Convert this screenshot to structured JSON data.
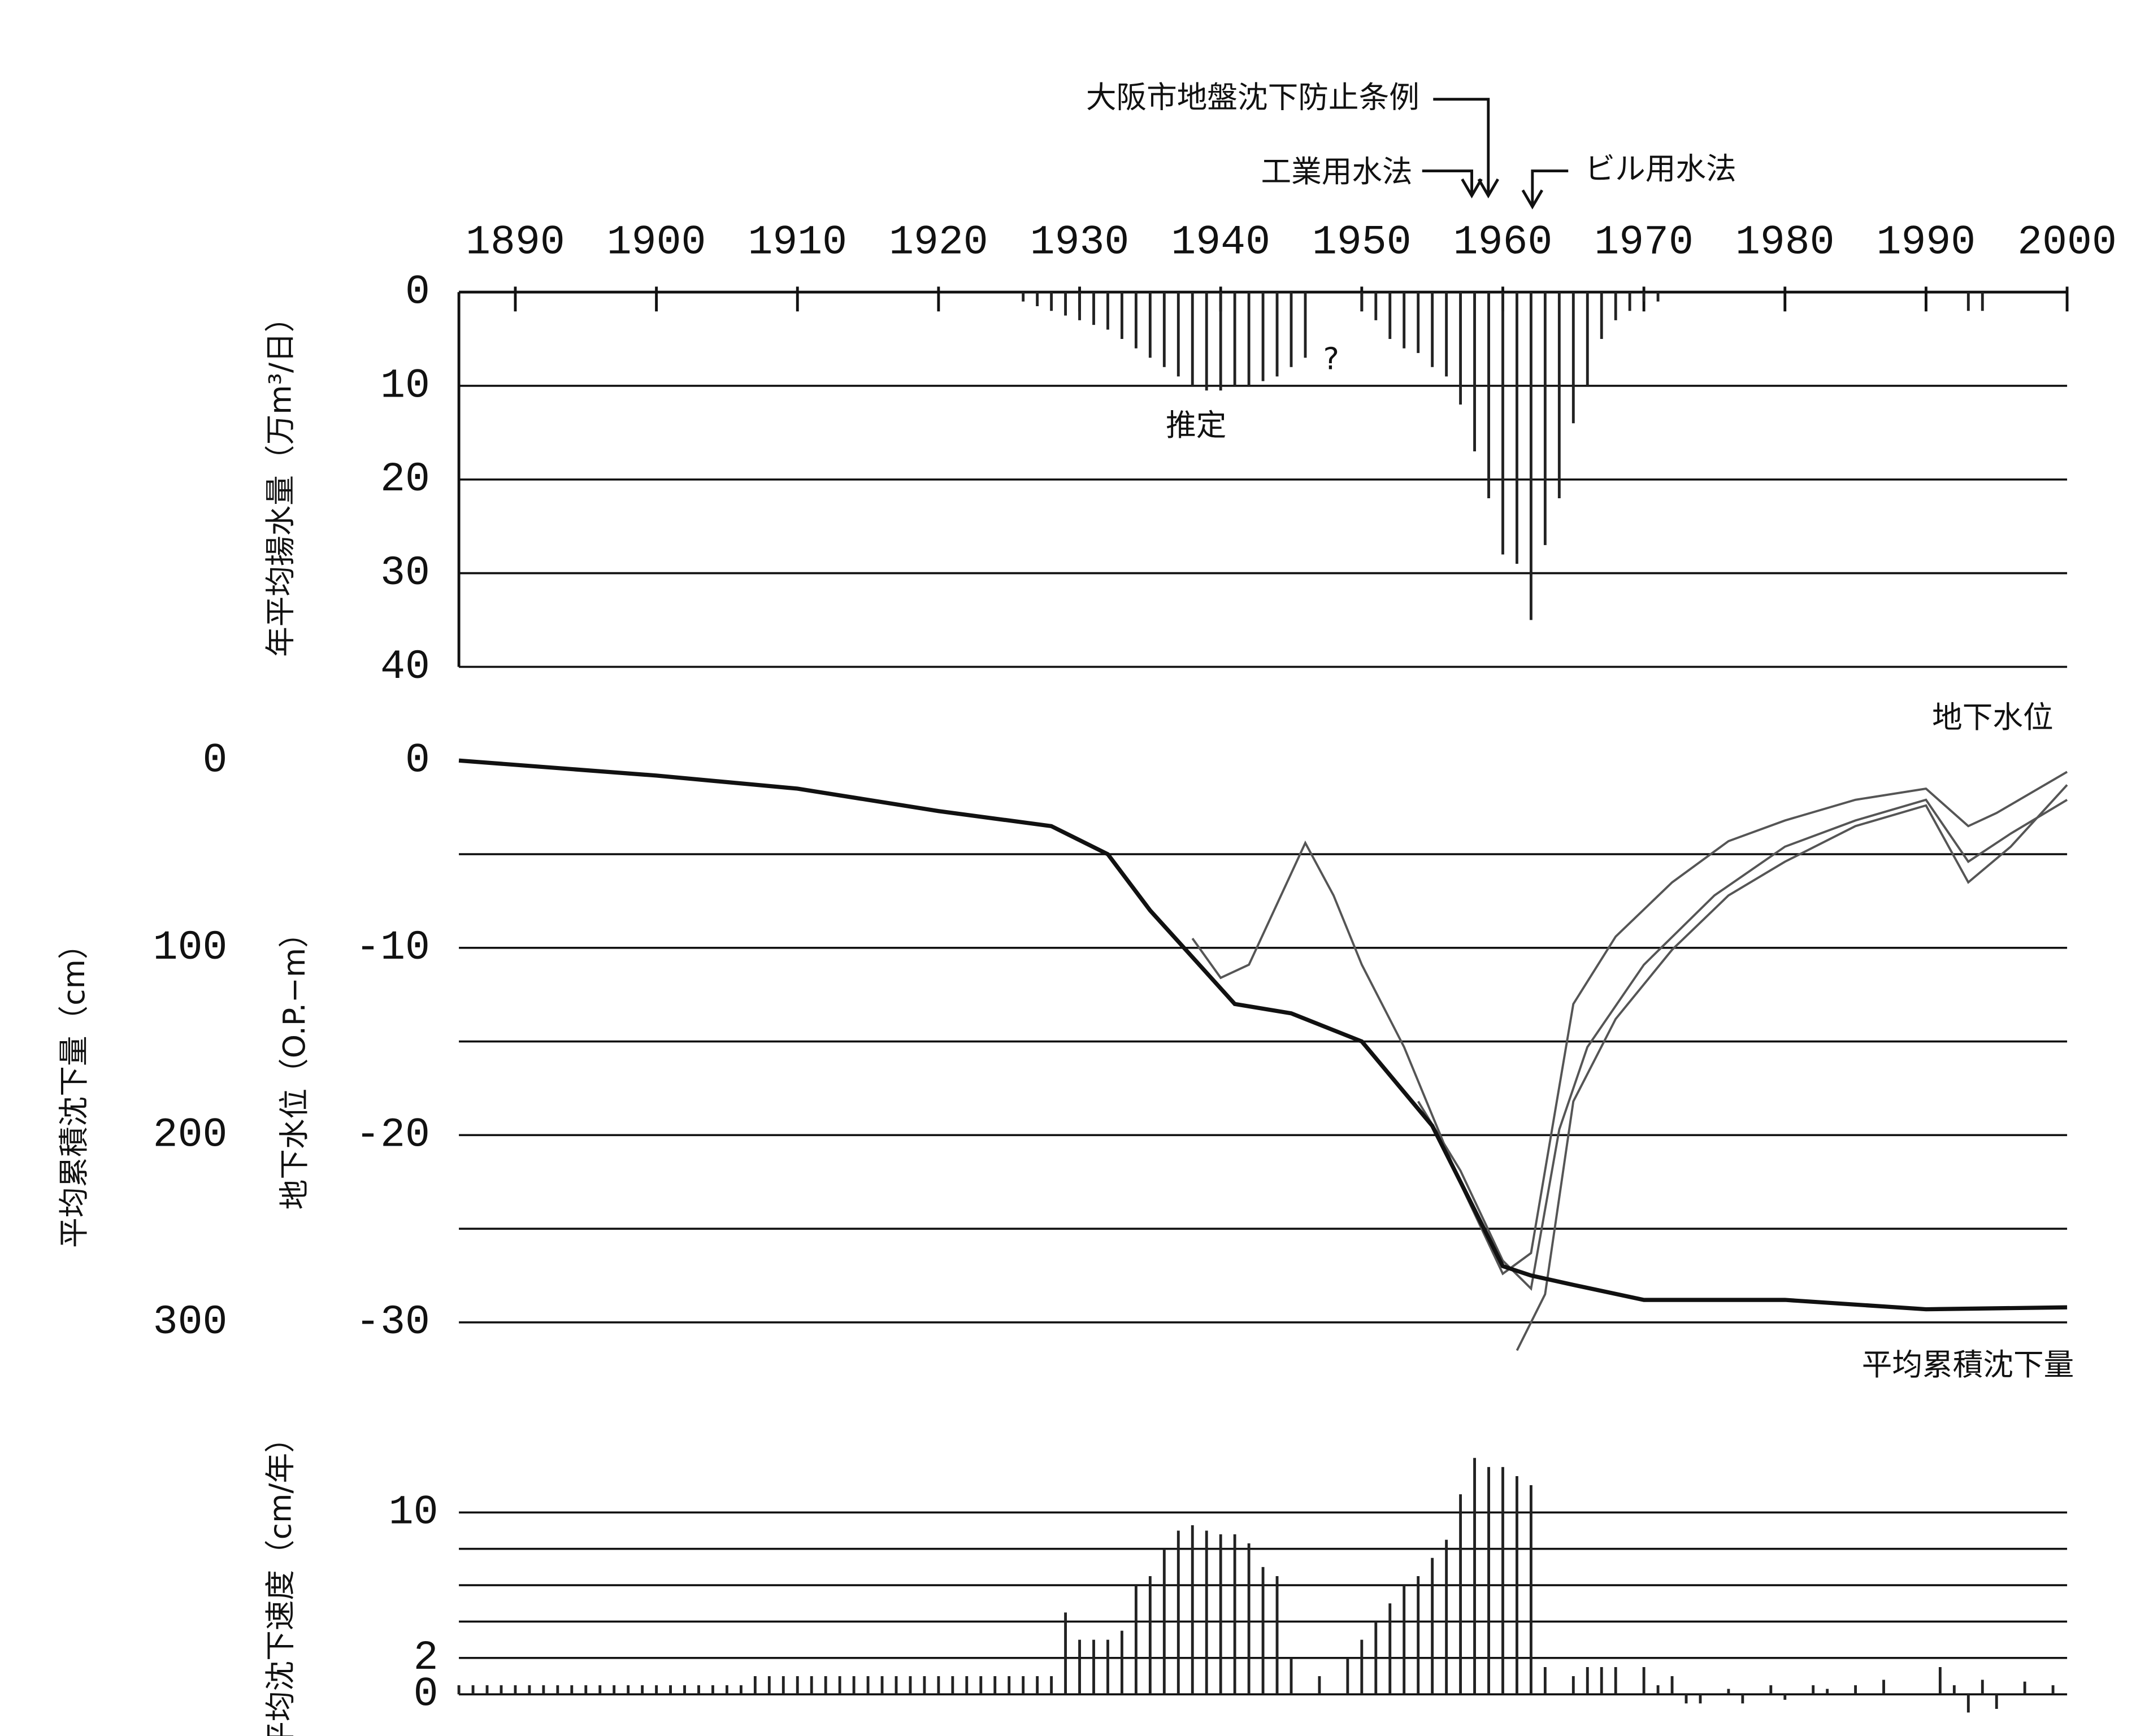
{
  "chart_data": [
    {
      "type": "bar",
      "y_label": "年平均揚水量（万m³/日）",
      "y_inverted": true,
      "xlim": [
        1886,
        2000
      ],
      "xticks": [
        1890,
        1900,
        1910,
        1920,
        1930,
        1940,
        1950,
        1960,
        1970,
        1980,
        1990,
        2000
      ],
      "ylim": [
        0,
        40
      ],
      "yticks": [
        0,
        10,
        20,
        30,
        40
      ],
      "grid": true,
      "color": "#222222",
      "x": [
        1926,
        1927,
        1928,
        1929,
        1930,
        1931,
        1932,
        1933,
        1934,
        1935,
        1936,
        1937,
        1938,
        1939,
        1940,
        1941,
        1942,
        1943,
        1944,
        1945,
        1946,
        1950,
        1951,
        1952,
        1953,
        1954,
        1955,
        1956,
        1957,
        1958,
        1959,
        1960,
        1961,
        1962,
        1963,
        1964,
        1965,
        1966,
        1967,
        1968,
        1969,
        1970,
        1971,
        1993,
        1994
      ],
      "values": [
        1,
        1.5,
        2,
        2.5,
        3,
        3.5,
        4,
        5,
        6,
        7,
        8,
        9,
        10,
        10.5,
        10.5,
        10,
        10,
        9.5,
        9,
        8,
        7,
        2,
        3,
        5,
        6,
        6.5,
        8,
        9,
        12,
        17,
        22,
        28,
        29,
        35,
        27,
        22,
        14,
        10,
        5,
        3,
        2,
        1,
        1,
        2,
        2
      ],
      "annotations": [
        "推定",
        "?",
        "大阪市地盤沈下防止条例",
        "工業用水法",
        "ビル用水法"
      ]
    },
    {
      "type": "line",
      "y_label": "地下水位（O.P.−m）",
      "y2_label": "平均累積沈下量（cm）",
      "xlim": [
        1886,
        2000
      ],
      "ylim": [
        -32,
        0
      ],
      "yticks": [
        0,
        -10,
        -20,
        -30
      ],
      "gridlines": [
        -5,
        -10,
        -15,
        -20,
        -25,
        -30
      ],
      "y2lim": [
        0,
        320
      ],
      "y2ticks": [
        0,
        100,
        200,
        300
      ],
      "y2_inverted": true,
      "series_labels": [
        "地下水位",
        "平均累積沈下量"
      ],
      "series": [
        {
          "color": "#555555",
          "x": [
            1938,
            1940,
            1942,
            1946,
            1948,
            1950,
            1953,
            1957,
            1960,
            1962,
            1965,
            1968,
            1972,
            1976,
            1980,
            1985,
            1990,
            1993,
            1995,
            2000
          ],
          "values": [
            -9.5,
            -11.6,
            -10.9,
            -4.4,
            -7.2,
            -10.9,
            -15.3,
            -22.6,
            -27.4,
            -26.3,
            -13,
            -9.4,
            -6.5,
            -4.3,
            -3.2,
            -2.1,
            -1.5,
            -3.5,
            -2.8,
            -0.6
          ]
        },
        {
          "color": "#555555",
          "x": [
            1954,
            1957,
            1960,
            1962,
            1964,
            1966,
            1970,
            1975,
            1980,
            1985,
            1990,
            1993,
            1996,
            2000
          ],
          "values": [
            -18.2,
            -21.9,
            -26.7,
            -28.2,
            -19.7,
            -15.3,
            -10.9,
            -7.2,
            -4.6,
            -3.2,
            -2.1,
            -5.4,
            -3.9,
            -2.1
          ]
        },
        {
          "color": "#555555",
          "x": [
            1961,
            1963,
            1965,
            1968,
            1972,
            1976,
            1980,
            1985,
            1990,
            1993,
            1996,
            2000
          ],
          "values": [
            -31.5,
            -28.5,
            -18.2,
            -13.8,
            -10.1,
            -7.2,
            -5.4,
            -3.5,
            -2.4,
            -6.5,
            -4.6,
            -1.3
          ]
        },
        {
          "color": "#111111",
          "axis": "y2",
          "width": 3,
          "x": [
            1886,
            1900,
            1910,
            1920,
            1928,
            1932,
            1935,
            1938,
            1941,
            1945,
            1950,
            1955,
            1958,
            1960,
            1962,
            1965,
            1970,
            1980,
            1990,
            2000
          ],
          "values": [
            0,
            8,
            15,
            27,
            35,
            50,
            80,
            105,
            130,
            135,
            150,
            195,
            240,
            270,
            275,
            280,
            288,
            288,
            293,
            292
          ]
        }
      ]
    },
    {
      "type": "bar",
      "y_label": "平均沈下速度（cm/年）",
      "xlim": [
        1886,
        2000
      ],
      "ylim": [
        -1,
        14
      ],
      "yticks": [
        0,
        2,
        10
      ],
      "gridlines": [
        2,
        4,
        6,
        8,
        10
      ],
      "color": "#222222",
      "x": [
        1886,
        1887,
        1888,
        1889,
        1890,
        1891,
        1892,
        1893,
        1894,
        1895,
        1896,
        1897,
        1898,
        1899,
        1900,
        1901,
        1902,
        1903,
        1904,
        1905,
        1906,
        1907,
        1908,
        1909,
        1910,
        1911,
        1912,
        1913,
        1914,
        1915,
        1916,
        1917,
        1918,
        1919,
        1920,
        1921,
        1922,
        1923,
        1924,
        1925,
        1926,
        1927,
        1928,
        1929,
        1930,
        1931,
        1932,
        1933,
        1934,
        1935,
        1936,
        1937,
        1938,
        1939,
        1940,
        1941,
        1942,
        1943,
        1944,
        1945,
        1946,
        1947,
        1948,
        1949,
        1950,
        1951,
        1952,
        1953,
        1954,
        1955,
        1956,
        1957,
        1958,
        1959,
        1960,
        1961,
        1962,
        1963,
        1964,
        1965,
        1966,
        1967,
        1968,
        1969,
        1970,
        1971,
        1972,
        1973,
        1974,
        1975,
        1976,
        1977,
        1978,
        1979,
        1980,
        1981,
        1982,
        1983,
        1984,
        1985,
        1986,
        1987,
        1988,
        1989,
        1990,
        1991,
        1992,
        1993,
        1994,
        1995,
        1996,
        1997,
        1998,
        1999,
        2000
      ],
      "values": [
        0.5,
        0.5,
        0.5,
        0.5,
        0.5,
        0.5,
        0.5,
        0.5,
        0.5,
        0.5,
        0.5,
        0.5,
        0.5,
        0.5,
        0.5,
        0.5,
        0.5,
        0.5,
        0.5,
        0.5,
        0.5,
        1,
        1,
        1,
        1,
        1,
        1,
        1,
        1,
        1,
        1,
        1,
        1,
        1,
        1,
        1,
        1,
        1,
        1,
        1,
        1,
        1,
        1,
        4.5,
        3,
        3,
        3,
        3.5,
        6,
        6.5,
        8,
        9,
        9.3,
        9,
        8.8,
        8.8,
        8.3,
        7,
        6.5,
        2,
        0,
        1,
        0,
        2,
        3,
        4,
        5,
        6,
        6.5,
        7.5,
        8.5,
        11,
        13,
        12.5,
        12.5,
        12,
        11.5,
        1.5,
        0,
        1,
        1.5,
        1.5,
        1.5,
        0,
        1.5,
        0.5,
        1,
        -0.5,
        -0.5,
        0,
        0.3,
        -0.5,
        0,
        0.5,
        -0.3,
        0,
        0.5,
        0.3,
        0,
        0.5,
        0,
        0.8,
        0,
        0,
        0,
        1.5,
        0.5,
        -1,
        0.8,
        -0.8,
        0,
        0.7,
        0,
        0.5,
        0
      ]
    }
  ]
}
